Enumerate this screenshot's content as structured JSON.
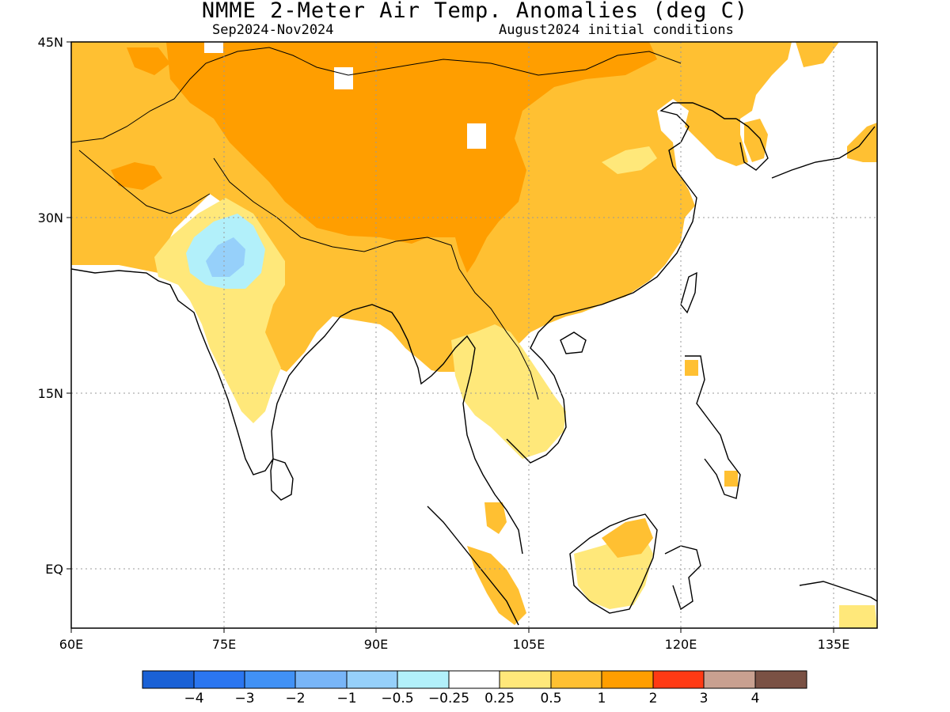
{
  "title": "NMME 2-Meter Air Temp. Anomalies (deg C)",
  "subtitle_left": "Sep2024-Nov2024",
  "subtitle_right": "August2024 initial conditions",
  "map": {
    "lat_range": [
      -3.3,
      45
    ],
    "lon_range": [
      60,
      139.3
    ],
    "lat_ticks": [
      {
        "value": 45,
        "label": "45N"
      },
      {
        "value": 30,
        "label": "30N"
      },
      {
        "value": 15,
        "label": "15N"
      },
      {
        "value": 0,
        "label": "EQ"
      }
    ],
    "lon_ticks": [
      {
        "value": 60,
        "label": "60E"
      },
      {
        "value": 75,
        "label": "75E"
      },
      {
        "value": 90,
        "label": "90E"
      },
      {
        "value": 105,
        "label": "105E"
      },
      {
        "value": 120,
        "label": "120E"
      },
      {
        "value": 135,
        "label": "135E"
      }
    ],
    "grid": "dotted"
  },
  "colorbar": {
    "colors": [
      "#1a61d6",
      "#2b76f0",
      "#4191f5",
      "#78b5f7",
      "#96d0fa",
      "#b2f0fa",
      "#ffffff",
      "#ffe87a",
      "#ffc032",
      "#ff9e00",
      "#ff3a14",
      "#c8a090",
      "#7a5144"
    ],
    "labels": [
      "−4",
      "−3",
      "−2",
      "−1",
      "−0.5",
      "−0.25",
      "0.25",
      "0.5",
      "1",
      "2",
      "3",
      "4"
    ]
  }
}
